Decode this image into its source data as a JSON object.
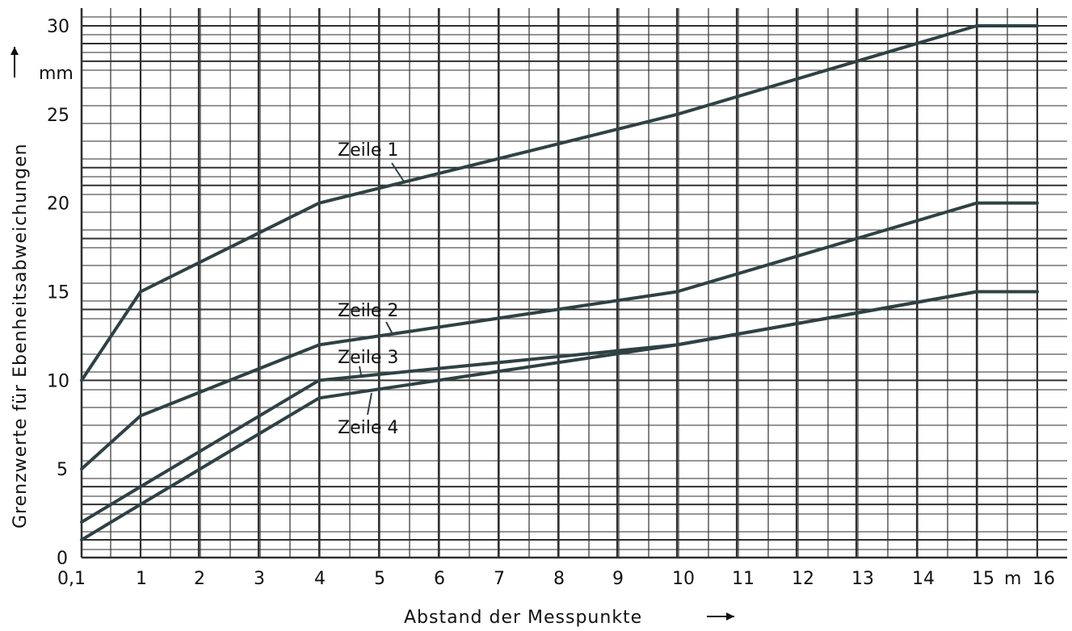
{
  "chart_data": {
    "type": "line",
    "xlabel": "Abstand der Messpunkte",
    "ylabel": "Grenzwerte für Ebenheitsabweichungen",
    "y_unit": "mm",
    "x_unit": "m",
    "xticks": [
      "0,1",
      "1",
      "2",
      "3",
      "4",
      "5",
      "6",
      "7",
      "8",
      "9",
      "10",
      "11",
      "12",
      "13",
      "14",
      "15",
      "16"
    ],
    "yticks": [
      "0",
      "5",
      "10",
      "15",
      "20",
      "25",
      "30"
    ],
    "xlim": [
      0.1,
      16.0
    ],
    "ylim": [
      0,
      30
    ],
    "grid": true,
    "series": [
      {
        "name": "Zeile 1",
        "x": [
          0.1,
          1,
          4,
          10,
          15,
          16
        ],
        "y": [
          10,
          15,
          20,
          25,
          30,
          30
        ]
      },
      {
        "name": "Zeile 2",
        "x": [
          0.1,
          1,
          4,
          10,
          15,
          16
        ],
        "y": [
          5,
          8,
          12,
          15,
          20,
          20
        ]
      },
      {
        "name": "Zeile 3",
        "x": [
          0.1,
          1,
          4,
          10,
          15,
          16
        ],
        "y": [
          2,
          4,
          10,
          12,
          15,
          15
        ]
      },
      {
        "name": "Zeile 4",
        "x": [
          0.1,
          1,
          4,
          10,
          15,
          16
        ],
        "y": [
          1,
          3,
          9,
          12,
          15,
          15
        ]
      }
    ],
    "colors": {
      "line": "#2f4144",
      "grid": "#303030",
      "text": "#111111"
    }
  }
}
